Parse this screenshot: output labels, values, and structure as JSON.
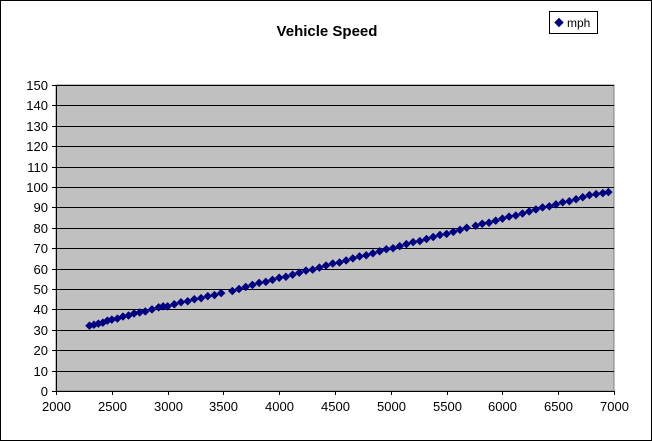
{
  "chart_data": {
    "type": "scatter",
    "title": "Vehicle Speed",
    "xlabel": "",
    "ylabel": "",
    "xlim": [
      2000,
      7000
    ],
    "ylim": [
      0,
      150
    ],
    "x_ticks": [
      2000,
      2500,
      3000,
      3500,
      4000,
      4500,
      5000,
      5500,
      6000,
      6500,
      7000
    ],
    "y_ticks": [
      0,
      10,
      20,
      30,
      40,
      50,
      60,
      70,
      80,
      90,
      100,
      110,
      120,
      130,
      140,
      150
    ],
    "grid": "horizontal",
    "legend_position": "top-right",
    "plot_background": "#C0C0C0",
    "series": [
      {
        "name": "mph",
        "color": "#000080",
        "marker": "diamond",
        "x": [
          2300,
          2340,
          2380,
          2420,
          2460,
          2500,
          2550,
          2600,
          2650,
          2700,
          2750,
          2800,
          2860,
          2920,
          2960,
          3000,
          3060,
          3120,
          3180,
          3240,
          3300,
          3360,
          3420,
          3480,
          3580,
          3640,
          3700,
          3760,
          3820,
          3880,
          3940,
          4000,
          4060,
          4120,
          4180,
          4240,
          4300,
          4360,
          4420,
          4480,
          4540,
          4600,
          4660,
          4720,
          4780,
          4840,
          4900,
          4960,
          5020,
          5080,
          5140,
          5200,
          5260,
          5320,
          5380,
          5440,
          5500,
          5560,
          5620,
          5680,
          5760,
          5820,
          5880,
          5940,
          6000,
          6060,
          6120,
          6180,
          6240,
          6300,
          6360,
          6420,
          6480,
          6540,
          6600,
          6660,
          6720,
          6780,
          6840,
          6900,
          6950
        ],
        "y": [
          32,
          32.5,
          33,
          33.5,
          34.5,
          35,
          35.5,
          36.5,
          37,
          38,
          38.5,
          39,
          40,
          41,
          41.5,
          41.5,
          42.5,
          43.5,
          44,
          45,
          45.5,
          46.5,
          47,
          48,
          49,
          50,
          51,
          52,
          53,
          53.5,
          54.5,
          55.5,
          56,
          57,
          58,
          59,
          59.5,
          60.5,
          61.5,
          62.5,
          63,
          64,
          65,
          66,
          66.5,
          67.5,
          68.5,
          69.5,
          70,
          71,
          72,
          73,
          73.5,
          74.5,
          75.5,
          76.5,
          77,
          78,
          79,
          80,
          81,
          82,
          82.5,
          83.5,
          84.5,
          85.5,
          86,
          87,
          88,
          89,
          90,
          90.5,
          91.5,
          92.5,
          93,
          94,
          95,
          96,
          96.5,
          97,
          97.5
        ]
      }
    ]
  }
}
